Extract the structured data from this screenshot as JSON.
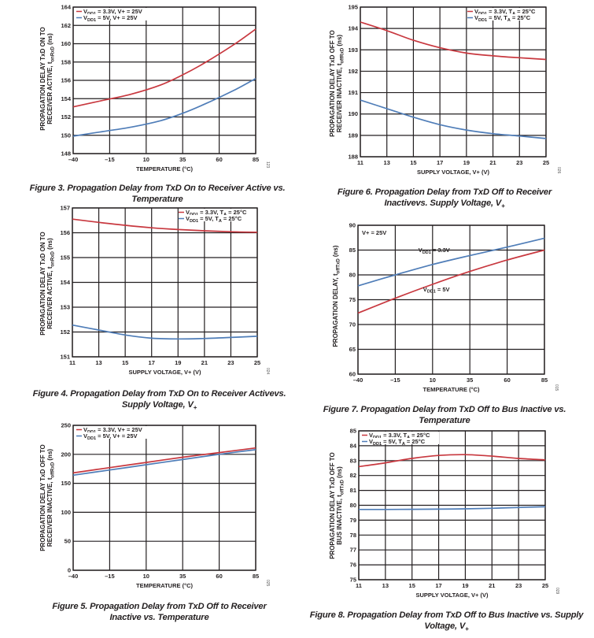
{
  "colors": {
    "red": "#c8383f",
    "blue": "#4f7db8",
    "grid": "#231f20"
  },
  "chart_data": [
    {
      "id": "fig3",
      "type": "line",
      "caption": "Figure 3. Propagation Delay from TxD On to Receiver Active vs. Temperature",
      "ylabel_lines": [
        "PROPAGATION DELAY TxD ON TO",
        "RECEIVER ACTIVE, tonRxD (ns)"
      ],
      "xlabel": "TEMPERATURE (°C)",
      "code": "123",
      "xlim": [
        -40,
        85
      ],
      "ylim": [
        148,
        164
      ],
      "xticks": [
        -40,
        -15,
        10,
        35,
        60,
        85
      ],
      "xtick_labels": [
        "–40",
        "–15",
        "10",
        "35",
        "60",
        "85"
      ],
      "yticks": [
        148,
        150,
        152,
        154,
        156,
        158,
        160,
        162,
        164
      ],
      "ytick_labels": [
        "148",
        "150",
        "152",
        "154",
        "156",
        "158",
        "160",
        "162",
        "164"
      ],
      "legend": [
        "VDD1 = 3.3V, V+ = 25V",
        "VDD1 = 5V, V+ = 25V"
      ],
      "legend_position": "top-left",
      "series": [
        {
          "name": "VDD1 = 3.3V, V+ = 25V",
          "color": "red",
          "x": [
            -40,
            -20,
            0,
            20,
            35,
            50,
            70,
            85
          ],
          "y": [
            153.1,
            153.8,
            154.5,
            155.5,
            156.6,
            157.9,
            159.9,
            161.6
          ]
        },
        {
          "name": "VDD1 = 5V, V+ = 25V",
          "color": "blue",
          "x": [
            -40,
            -20,
            0,
            20,
            35,
            50,
            70,
            85
          ],
          "y": [
            149.9,
            150.4,
            150.9,
            151.6,
            152.4,
            153.4,
            154.9,
            156.2
          ]
        }
      ]
    },
    {
      "id": "fig4",
      "type": "line",
      "caption": "Figure 4. Propagation Delay from TxD On to Receiver Activevs. Supply Voltage, V+",
      "ylabel_lines": [
        "PROPAGATION DELAY TxD ON TO",
        "RECEIVER ACTIVE, tonRxD (ns)"
      ],
      "xlabel": "SUPPLY VOLTAGE, V+ (V)",
      "code": "024",
      "xlim": [
        11,
        25
      ],
      "ylim": [
        151,
        157
      ],
      "xticks": [
        11,
        13,
        15,
        17,
        19,
        21,
        23,
        25
      ],
      "xtick_labels": [
        "11",
        "13",
        "15",
        "17",
        "19",
        "21",
        "23",
        "25"
      ],
      "yticks": [
        151,
        152,
        153,
        154,
        155,
        156,
        157
      ],
      "ytick_labels": [
        "151",
        "152",
        "153",
        "154",
        "155",
        "156",
        "157"
      ],
      "legend": [
        "VDD1 = 3.3V, TA = 25°C",
        "VDD1 = 5V, TA = 25°C"
      ],
      "legend_position": "top-right",
      "series": [
        {
          "name": "VDD1 = 3.3V, TA = 25°C",
          "color": "red",
          "x": [
            11,
            13,
            15,
            17,
            19,
            21,
            23,
            25
          ],
          "y": [
            156.55,
            156.42,
            156.3,
            156.2,
            156.13,
            156.08,
            156.04,
            156.02
          ]
        },
        {
          "name": "VDD1 = 5V, TA = 25°C",
          "color": "blue",
          "x": [
            11,
            13,
            15,
            17,
            19,
            21,
            23,
            25
          ],
          "y": [
            152.28,
            152.08,
            151.88,
            151.75,
            151.72,
            151.74,
            151.78,
            151.83
          ]
        }
      ]
    },
    {
      "id": "fig5",
      "type": "line",
      "caption": "Figure 5. Propagation Delay from TxD Off to Receiver Inactive vs. Temperature",
      "ylabel_lines": [
        "PROPAGATION DELAY TxD OFF TO",
        "RECEIVER INACTIVE, toffRxD (ns)"
      ],
      "xlabel": "TEMPERATURE (°C)",
      "code": "025",
      "xlim": [
        -40,
        85
      ],
      "ylim": [
        0,
        250
      ],
      "xticks": [
        -40,
        -15,
        10,
        35,
        60,
        85
      ],
      "xtick_labels": [
        "–40",
        "–15",
        "10",
        "35",
        "60",
        "85"
      ],
      "yticks": [
        0,
        50,
        100,
        150,
        200,
        250
      ],
      "ytick_labels": [
        "0",
        "50",
        "100",
        "150",
        "200",
        "250"
      ],
      "legend": [
        "VDD1 = 3.3V, V+ = 25V",
        "VDD1 = 5V, V+ = 25V"
      ],
      "legend_position": "top-left",
      "series": [
        {
          "name": "VDD1 = 3.3V, V+ = 25V",
          "color": "red",
          "x": [
            -40,
            -15,
            10,
            35,
            60,
            85
          ],
          "y": [
            168,
            177,
            186,
            195,
            203,
            211
          ]
        },
        {
          "name": "VDD1 = 5V, V+ = 25V",
          "color": "blue",
          "x": [
            -40,
            -15,
            10,
            35,
            60,
            85
          ],
          "y": [
            164,
            173,
            182,
            191,
            200,
            208
          ]
        }
      ]
    },
    {
      "id": "fig6",
      "type": "line",
      "caption": "Figure 6. Propagation Delay from TxD Off to Receiver Inactivevs. Supply Voltage, V+",
      "ylabel_lines": [
        "PROPAGATION DELAY TxD OFF TO",
        "RECEIVER INACTIVE, toffRxD (ns)"
      ],
      "xlabel": "SUPPLY VOLTAGE, V+ (V)",
      "code": "026",
      "xlim": [
        11,
        25
      ],
      "ylim": [
        188,
        195
      ],
      "xticks": [
        11,
        13,
        15,
        17,
        19,
        21,
        23,
        25
      ],
      "xtick_labels": [
        "11",
        "13",
        "15",
        "17",
        "19",
        "21",
        "23",
        "25"
      ],
      "yticks": [
        188,
        189,
        190,
        191,
        192,
        193,
        194,
        195
      ],
      "ytick_labels": [
        "188",
        "189",
        "190",
        "191",
        "192",
        "193",
        "194",
        "195"
      ],
      "legend": [
        "VDD1 = 3.3V, TA = 25°C",
        "VDD1 = 5V, TA = 25°C"
      ],
      "legend_position": "top-right",
      "series": [
        {
          "name": "VDD1 = 3.3V, TA = 25°C",
          "color": "red",
          "x": [
            11,
            13,
            15,
            17,
            19,
            21,
            23,
            25
          ],
          "y": [
            194.3,
            193.9,
            193.45,
            193.1,
            192.85,
            192.72,
            192.63,
            192.55
          ]
        },
        {
          "name": "VDD1 = 5V, TA = 25°C",
          "color": "blue",
          "x": [
            11,
            13,
            15,
            17,
            19,
            21,
            23,
            25
          ],
          "y": [
            190.65,
            190.25,
            189.85,
            189.5,
            189.25,
            189.08,
            188.97,
            188.85
          ]
        }
      ]
    },
    {
      "id": "fig7",
      "type": "line",
      "caption": "Figure 7. Propagation Delay from TxD Off to Bus Inactive vs. Temperature",
      "ylabel_lines": [
        "PROPAGATION DELAY, toffTxD (ns)"
      ],
      "xlabel": "TEMPERATURE (°C)",
      "code": "015",
      "xlim": [
        -40,
        85
      ],
      "ylim": [
        60,
        90
      ],
      "xticks": [
        -40,
        -15,
        10,
        35,
        60,
        85
      ],
      "xtick_labels": [
        "–40",
        "–15",
        "10",
        "35",
        "60",
        "85"
      ],
      "yticks": [
        60,
        65,
        70,
        75,
        80,
        85,
        90
      ],
      "ytick_labels": [
        "60",
        "65",
        "70",
        "75",
        "80",
        "85",
        "90"
      ],
      "annotations": [
        "V+ = 25V",
        "VDD1 = 3.3V",
        "VDD1 = 5V"
      ],
      "series": [
        {
          "name": "VDD1 = 3.3V",
          "color": "blue",
          "x": [
            -40,
            -15,
            10,
            35,
            60,
            85
          ],
          "y": [
            77.8,
            80.0,
            82.1,
            83.9,
            85.6,
            87.4
          ]
        },
        {
          "name": "VDD1 = 5V",
          "color": "red",
          "x": [
            -40,
            -15,
            10,
            35,
            60,
            85
          ],
          "y": [
            72.3,
            75.3,
            78.1,
            80.7,
            83.0,
            85.0
          ]
        }
      ]
    },
    {
      "id": "fig8",
      "type": "line",
      "caption": "Figure 8. Propagation Delay from TxD Off to Bus Inactive vs. Supply Voltage, V+",
      "ylabel_lines": [
        "PROPAGATION DELAY TxD OFF TO",
        "BUS INACTIVE, toffTxD (ns)"
      ],
      "xlabel": "SUPPLY VOLTAGE, V+ (V)",
      "code": "029",
      "xlim": [
        11,
        25
      ],
      "ylim": [
        75,
        85
      ],
      "xticks": [
        11,
        13,
        15,
        17,
        19,
        21,
        23,
        25
      ],
      "xtick_labels": [
        "11",
        "13",
        "15",
        "17",
        "19",
        "21",
        "23",
        "25"
      ],
      "yticks": [
        75,
        76,
        77,
        78,
        79,
        80,
        81,
        82,
        83,
        84,
        85
      ],
      "ytick_labels": [
        "75",
        "76",
        "77",
        "78",
        "79",
        "80",
        "81",
        "82",
        "83",
        "84",
        "85"
      ],
      "legend": [
        "VDD1 = 3.3V, TA = 25°C",
        "VDD1 = 5V, TA = 25°C"
      ],
      "legend_position": "top-left",
      "series": [
        {
          "name": "VDD1 = 3.3V, TA = 25°C",
          "color": "red",
          "x": [
            11,
            13,
            15,
            17,
            19,
            21,
            23,
            25
          ],
          "y": [
            82.6,
            82.85,
            83.15,
            83.35,
            83.4,
            83.3,
            83.15,
            83.05
          ]
        },
        {
          "name": "VDD1 = 5V, TA = 25°C",
          "color": "blue",
          "x": [
            11,
            13,
            15,
            17,
            19,
            21,
            23,
            25
          ],
          "y": [
            79.72,
            79.72,
            79.73,
            79.74,
            79.76,
            79.8,
            79.85,
            79.9
          ]
        }
      ]
    }
  ]
}
